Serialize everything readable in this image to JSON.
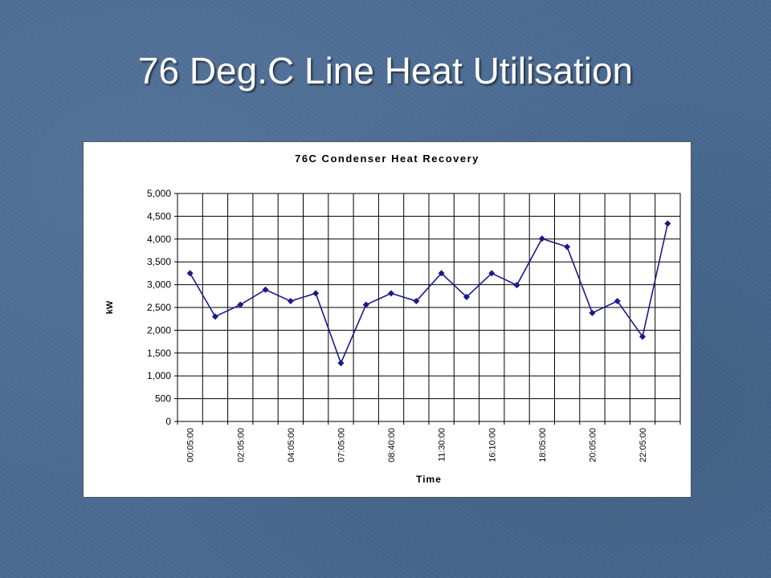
{
  "slide": {
    "title": "76 Deg.C Line Heat Utilisation"
  },
  "chart_data": {
    "type": "line",
    "title": "76C Condenser Heat Recovery",
    "xlabel": "Time",
    "ylabel": "kW",
    "ylim": [
      0,
      5000
    ],
    "yticks": [
      0,
      500,
      1000,
      1500,
      2000,
      2500,
      3000,
      3500,
      4000,
      4500,
      5000
    ],
    "ytick_labels": [
      "0",
      "500",
      "1,000",
      "1,500",
      "2,000",
      "2,500",
      "3,000",
      "3,500",
      "4,000",
      "4,500",
      "5,000"
    ],
    "categories": [
      "00:05:00",
      "",
      "02:05:00",
      "",
      "04:05:00",
      "",
      "07:05:00",
      "",
      "08:40:00",
      "",
      "11:30:00",
      "",
      "16:10:00",
      "",
      "18:05:00",
      "",
      "20:05:00",
      "",
      "22:05:00",
      ""
    ],
    "grid": true,
    "legend": "none",
    "series": [
      {
        "color": "#1a1a8c",
        "values": [
          3250,
          2300,
          2560,
          2890,
          2640,
          2810,
          1280,
          2560,
          2810,
          2640,
          3250,
          2730,
          3250,
          2990,
          4010,
          3830,
          2380,
          2640,
          1860,
          4340
        ]
      }
    ]
  }
}
